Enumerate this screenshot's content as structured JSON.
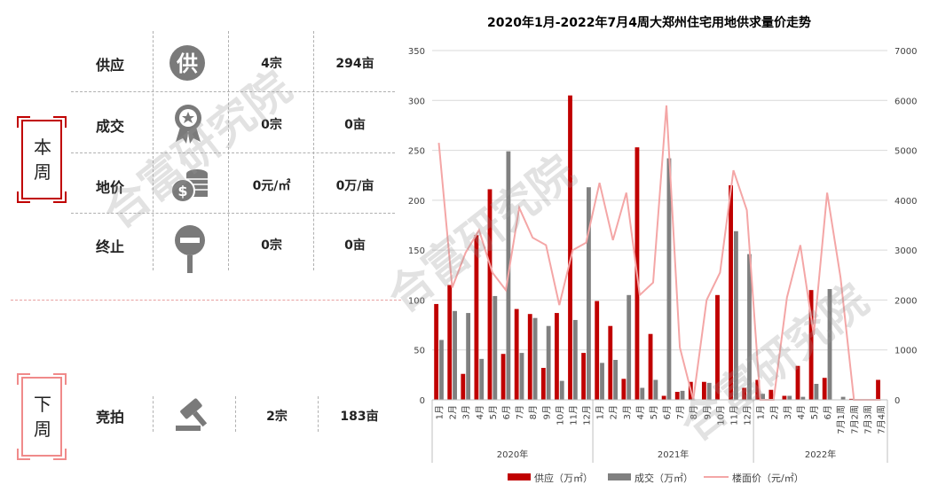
{
  "this_week": {
    "badge": [
      "本",
      "周"
    ],
    "rows": [
      {
        "label": "供应",
        "icon": "supply-icon",
        "count": "4宗",
        "area": "294亩"
      },
      {
        "label": "成交",
        "icon": "medal-icon",
        "count": "0宗",
        "area": "0亩"
      },
      {
        "label": "地价",
        "icon": "coins-icon",
        "count": "0元/㎡",
        "area": "0万/亩"
      },
      {
        "label": "终止",
        "icon": "stop-sign-icon",
        "count": "0宗",
        "area": "0亩"
      }
    ]
  },
  "next_week": {
    "badge": [
      "下",
      "周"
    ],
    "rows": [
      {
        "label": "竞拍",
        "icon": "gavel-icon",
        "count": "2宗",
        "area": "183亩"
      }
    ]
  },
  "watermark": "合富研究院",
  "colors": {
    "supply": "#c00000",
    "deal": "#808080",
    "price": "#f4a6a6",
    "accent": "#c00000"
  },
  "chart_data": {
    "type": "bar",
    "title": "2020年1月-2022年7月4周大郑州住宅用地供求量价走势",
    "categories": [
      "1月",
      "2月",
      "3月",
      "4月",
      "5月",
      "6月",
      "7月",
      "8月",
      "9月",
      "10月",
      "11月",
      "12月",
      "1月",
      "2月",
      "3月",
      "4月",
      "5月",
      "6月",
      "7月",
      "8月",
      "9月",
      "10月",
      "11月",
      "12月",
      "1月",
      "2月",
      "3月",
      "4月",
      "5月",
      "6月",
      "7月1周",
      "7月2周",
      "7月3周",
      "7月4周"
    ],
    "groups": [
      {
        "label": "2020年",
        "start": 0,
        "end": 11
      },
      {
        "label": "2021年",
        "start": 12,
        "end": 23
      },
      {
        "label": "2022年",
        "start": 24,
        "end": 33
      }
    ],
    "y_left": {
      "min": 0,
      "max": 350,
      "ticks": [
        0,
        50,
        100,
        150,
        200,
        250,
        300,
        350
      ]
    },
    "y_right": {
      "min": 0,
      "max": 7000,
      "ticks": [
        0,
        1000,
        2000,
        3000,
        4000,
        5000,
        6000,
        7000
      ]
    },
    "series": [
      {
        "name": "供应（万㎡）",
        "type": "bar",
        "axis": "left",
        "color": "#c00000",
        "values": [
          96,
          115,
          26,
          165,
          211,
          46,
          91,
          86,
          32,
          87,
          305,
          47,
          99,
          74,
          21,
          253,
          66,
          4,
          8,
          18,
          18,
          105,
          215,
          12,
          20,
          10,
          4,
          34,
          110,
          22,
          0,
          1,
          0,
          20
        ]
      },
      {
        "name": "成交（万㎡）",
        "type": "bar",
        "axis": "left",
        "color": "#808080",
        "values": [
          60,
          89,
          87,
          41,
          104,
          249,
          47,
          82,
          74,
          19,
          80,
          213,
          37,
          40,
          105,
          12,
          20,
          242,
          9,
          0,
          17,
          0,
          169,
          146,
          6,
          0,
          4,
          3,
          16,
          111,
          3,
          0,
          0,
          0
        ]
      },
      {
        "name": "楼面价（元/㎡）",
        "type": "line",
        "axis": "right",
        "color": "#f4a6a6",
        "values": [
          5150,
          2250,
          2950,
          3400,
          2550,
          2200,
          3850,
          3250,
          3100,
          1900,
          3000,
          3150,
          4350,
          3200,
          4150,
          2100,
          2350,
          5900,
          1050,
          0,
          2000,
          2550,
          4600,
          3800,
          0,
          0,
          2050,
          3100,
          1300,
          4150,
          2450,
          0,
          0,
          0
        ]
      }
    ]
  }
}
